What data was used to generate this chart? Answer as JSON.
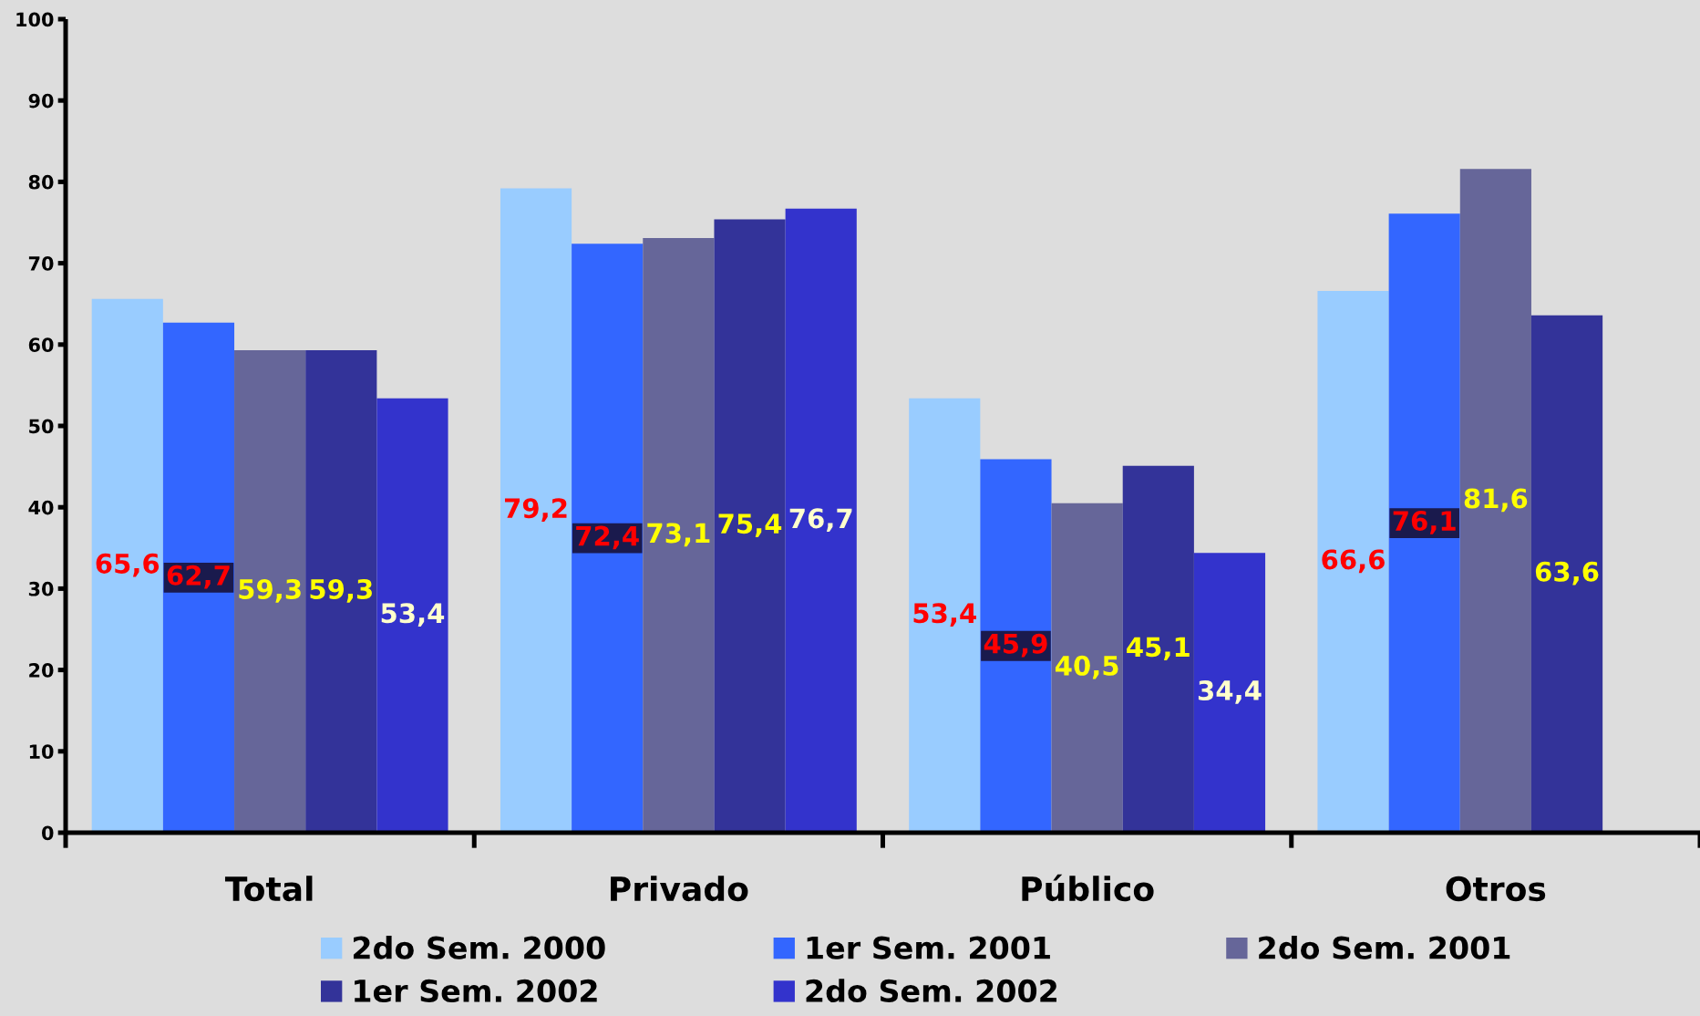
{
  "chart_data": {
    "type": "bar",
    "categories": [
      "Total",
      "Privado",
      "Público",
      "Otros"
    ],
    "series": [
      {
        "name": "2do Sem. 2000",
        "color": "#99ccff",
        "values": [
          65.6,
          79.2,
          53.4,
          66.6
        ],
        "value_labels": [
          "65,6",
          "79,2",
          "53,4",
          "66,6"
        ]
      },
      {
        "name": "1er Sem. 2001",
        "color": "#3366ff",
        "values": [
          62.7,
          72.4,
          45.9,
          76.1
        ],
        "value_labels": [
          "62,7",
          "72,4",
          "45,9",
          "76,1"
        ]
      },
      {
        "name": "2do Sem. 2001",
        "color": "#666699",
        "values": [
          59.3,
          73.1,
          40.5,
          81.6
        ],
        "value_labels": [
          "59,3",
          "73,1",
          "40,5",
          "81,6"
        ]
      },
      {
        "name": "1er Sem. 2002",
        "color": "#333399",
        "values": [
          59.3,
          75.4,
          45.1,
          63.6
        ],
        "value_labels": [
          "59,3",
          "75,4",
          "45,1",
          "63,6"
        ]
      },
      {
        "name": "2do Sem. 2002",
        "color": "#3333cc",
        "values": [
          53.4,
          76.7,
          34.4,
          null
        ],
        "value_labels": [
          "53,4",
          "76,7",
          "34,4",
          null
        ]
      }
    ],
    "ylim": [
      0,
      100
    ],
    "yticks": [
      0,
      10,
      20,
      30,
      40,
      50,
      60,
      70,
      80,
      90,
      100
    ],
    "legend": "bottom",
    "grid": false
  }
}
